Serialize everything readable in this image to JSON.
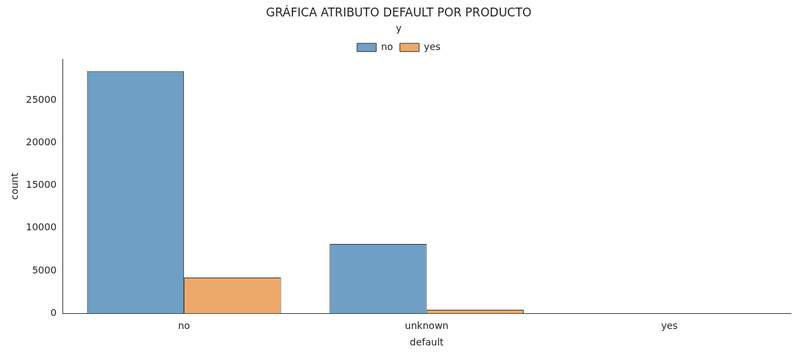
{
  "chart_data": {
    "type": "bar",
    "title": "GRÁFICA ATRIBUTO DEFAULT POR PRODUCTO",
    "xlabel": "default",
    "ylabel": "count",
    "legend_title": "y",
    "legend": "top",
    "grid": false,
    "categories": [
      "no",
      "unknown",
      "yes"
    ],
    "series": [
      {
        "name": "no",
        "color": "#6f9fc4",
        "values": [
          28400,
          8150,
          0
        ]
      },
      {
        "name": "yes",
        "color": "#eca96a",
        "values": [
          4200,
          440,
          0
        ]
      }
    ],
    "ylim": [
      0,
      29800
    ],
    "yticks": [
      0,
      5000,
      10000,
      15000,
      20000,
      25000
    ]
  }
}
